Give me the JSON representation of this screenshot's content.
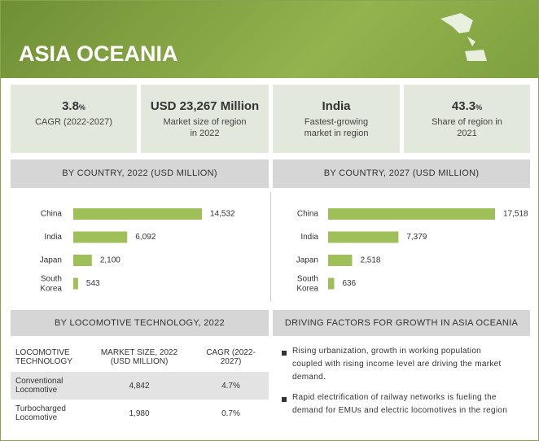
{
  "header": {
    "title": "ASIA OCEANIA"
  },
  "kpis": [
    {
      "value": "3.8",
      "unit": "%",
      "label": "CAGR (2022-2027)"
    },
    {
      "value": "USD 23,267 Million",
      "label": "Market size of region in 2022"
    },
    {
      "value": "India",
      "label": "Fastest-growing market in region"
    },
    {
      "value": "43.3",
      "unit": "%",
      "label": "Share of region in 2021"
    }
  ],
  "chart_data": [
    {
      "type": "bar",
      "title": "BY COUNTRY, 2022 (USD MILLION)",
      "orientation": "horizontal",
      "color": "#9fbf58",
      "categories": [
        "China",
        "India",
        "Japan",
        "South Korea"
      ],
      "values": [
        14532,
        6092,
        2100,
        543
      ],
      "value_labels": [
        "14,532",
        "6,092",
        "2,100",
        "543"
      ]
    },
    {
      "type": "bar",
      "title": "BY COUNTRY, 2027 (USD MILLION)",
      "orientation": "horizontal",
      "color": "#9fbf58",
      "categories": [
        "China",
        "India",
        "Japan",
        "South Korea"
      ],
      "values": [
        17518,
        7379,
        2518,
        636
      ],
      "value_labels": [
        "17,518",
        "7,379",
        "2,518",
        "636"
      ]
    }
  ],
  "table": {
    "title": "BY LOCOMOTIVE TECHNOLOGY, 2022",
    "columns": [
      "LOCOMOTIVE TECHNOLOGY",
      "MARKET SIZE, 2022 (USD MILLION)",
      "CAGR (2022-2027)"
    ],
    "rows": [
      [
        "Conventional Locomotive",
        "4,842",
        "4.7%"
      ],
      [
        "Turbocharged Locomotive",
        "1,980",
        "0.7%"
      ]
    ]
  },
  "drivers": {
    "title": "DRIVING FACTORS FOR GROWTH IN ASIA OCEANIA",
    "items": [
      "Rising urbanization, growth in working population coupled with rising income level are driving the market demand.",
      "Rapid electrification of railway networks is fueling the demand for EMUs and electric locomotives in the region"
    ]
  }
}
